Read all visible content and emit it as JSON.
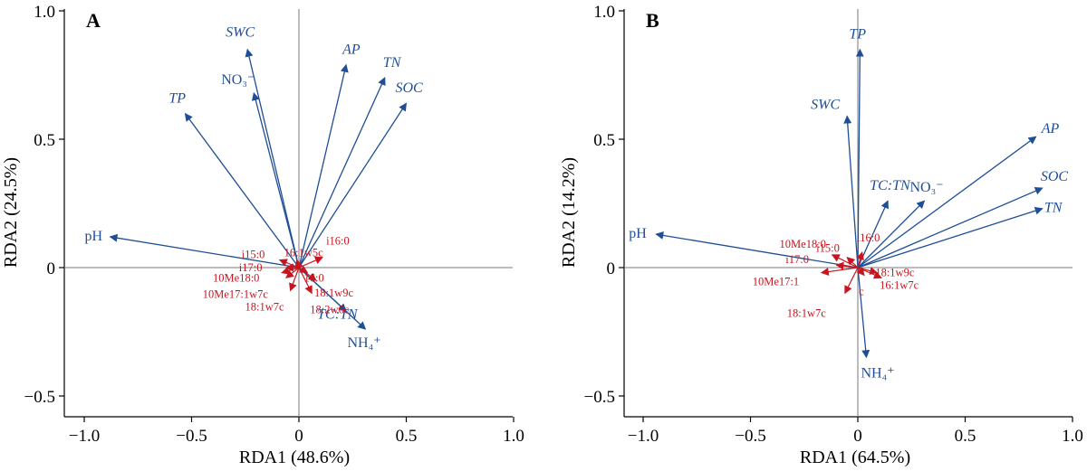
{
  "colors": {
    "env": "#1f4e96",
    "plfa": "#c8141e",
    "axis": "#000000",
    "reference_line": "#7a7a7a"
  },
  "chart_data": [
    {
      "type": "scatter",
      "panel": "A",
      "xlabel": "RDA1 (48.6%)",
      "ylabel": "RDA2 (24.5%)",
      "xlim": [
        -1.1,
        1.0
      ],
      "ylim": [
        -0.58,
        1.0
      ],
      "xticks": [
        -1.0,
        -0.5,
        0,
        0.5,
        1.0
      ],
      "yticks": [
        -0.5,
        0,
        0.5,
        1.0
      ],
      "xtick_labels": [
        "−1.0",
        "−0.5",
        "0",
        "0.5",
        "1.0"
      ],
      "ytick_labels": [
        "−0.5",
        "0",
        "0.5",
        "1.0"
      ],
      "env_vectors": [
        {
          "label": "pH",
          "x": -0.88,
          "y": 0.12,
          "italic": false
        },
        {
          "label": "TP",
          "x": -0.53,
          "y": 0.6,
          "italic": true
        },
        {
          "label": "SWC",
          "x": -0.24,
          "y": 0.85,
          "italic": true
        },
        {
          "label": "NO₃⁻",
          "x": -0.21,
          "y": 0.68,
          "italic": false
        },
        {
          "label": "AP",
          "x": 0.22,
          "y": 0.79,
          "italic": true
        },
        {
          "label": "TN",
          "x": 0.4,
          "y": 0.74,
          "italic": true
        },
        {
          "label": "SOC",
          "x": 0.5,
          "y": 0.64,
          "italic": true
        },
        {
          "label": "TC:TN",
          "x": 0.22,
          "y": -0.17,
          "italic": true
        },
        {
          "label": "NH₄⁺",
          "x": 0.31,
          "y": -0.24,
          "italic": false
        }
      ],
      "plfa_vectors": [
        {
          "label": "i15:0",
          "x": -0.09,
          "y": 0.03
        },
        {
          "label": "16:1w5c",
          "x": -0.01,
          "y": 0.03
        },
        {
          "label": "i16:0",
          "x": 0.11,
          "y": 0.04
        },
        {
          "label": "i17:0",
          "x": -0.06,
          "y": 0.0
        },
        {
          "label": "10Me18:0",
          "x": -0.08,
          "y": -0.02
        },
        {
          "label": "10Me17:1w7c",
          "x": -0.06,
          "y": -0.04
        },
        {
          "label": "18:1w7c",
          "x": -0.04,
          "y": -0.09
        },
        {
          "label": "16:0",
          "x": 0.04,
          "y": -0.02
        },
        {
          "label": "18:1w9c",
          "x": 0.08,
          "y": -0.05
        },
        {
          "label": "18:2w6c",
          "x": 0.06,
          "y": -0.1
        }
      ]
    },
    {
      "type": "scatter",
      "panel": "B",
      "xlabel": "RDA1 (64.5%)",
      "ylabel": "RDA2 (14.2%)",
      "xlim": [
        -1.1,
        1.0
      ],
      "ylim": [
        -0.58,
        1.0
      ],
      "xticks": [
        -1.0,
        -0.5,
        0,
        0.5,
        1.0
      ],
      "yticks": [
        -0.5,
        0,
        0.5,
        1.0
      ],
      "xtick_labels": [
        "−1.0",
        "−0.5",
        "0",
        "0.5",
        "1.0"
      ],
      "ytick_labels": [
        "−0.5",
        "0",
        "0.5",
        "1.0"
      ],
      "env_vectors": [
        {
          "label": "pH",
          "x": -0.94,
          "y": 0.13,
          "italic": false
        },
        {
          "label": "TP",
          "x": 0.01,
          "y": 0.85,
          "italic": true
        },
        {
          "label": "SWC",
          "x": -0.05,
          "y": 0.59,
          "italic": true
        },
        {
          "label": "AP",
          "x": 0.83,
          "y": 0.51,
          "italic": true
        },
        {
          "label": "SOC",
          "x": 0.86,
          "y": 0.31,
          "italic": true
        },
        {
          "label": "TN",
          "x": 0.86,
          "y": 0.23,
          "italic": true
        },
        {
          "label": "TC:TN",
          "x": 0.14,
          "y": 0.26,
          "italic": true
        },
        {
          "label": "NO₃⁻",
          "x": 0.31,
          "y": 0.26,
          "italic": false
        },
        {
          "label": "NH₄⁺",
          "x": 0.04,
          "y": -0.35,
          "italic": false
        }
      ],
      "plfa_vectors": [
        {
          "label": "10Me18:0",
          "x": -0.12,
          "y": 0.05
        },
        {
          "label": "i15:0",
          "x": -0.05,
          "y": 0.04
        },
        {
          "label": "i16:0",
          "x": 0.02,
          "y": 0.06
        },
        {
          "label": "i17:0",
          "x": -0.1,
          "y": 0.01
        },
        {
          "label": "10Me17:1",
          "x": -0.17,
          "y": -0.02
        },
        {
          "label": "18:1w9c",
          "x": 0.09,
          "y": -0.02
        },
        {
          "label": "c",
          "x": 0.03,
          "y": -0.03
        },
        {
          "label": "16:1w7c",
          "x": 0.11,
          "y": -0.04
        },
        {
          "label": "18:1w7c",
          "x": -0.06,
          "y": -0.1
        }
      ]
    }
  ]
}
